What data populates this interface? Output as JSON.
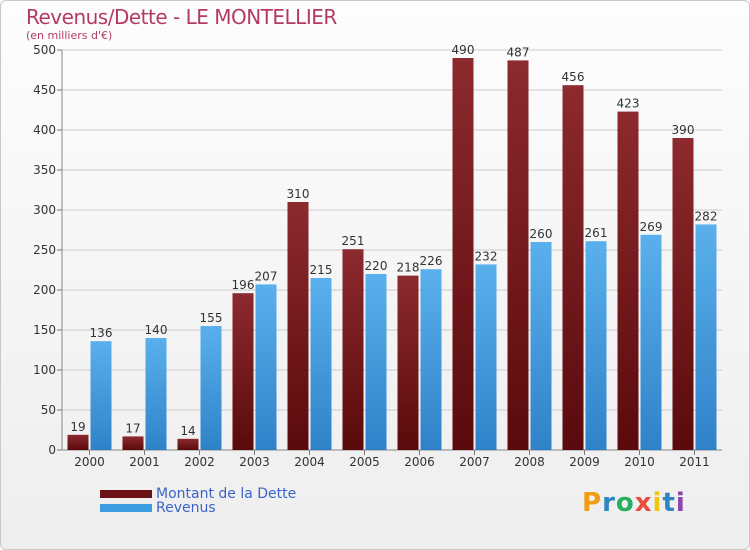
{
  "header": {
    "title": "Revenus/Dette - LE MONTELLIER",
    "unit_note": "(en milliers d'€)"
  },
  "legend": {
    "debt_label": "Montant de la Dette",
    "revenue_label": "Revenus"
  },
  "brand": {
    "letters": [
      "P",
      "r",
      "o",
      "x",
      "i",
      "t",
      "i"
    ],
    "colors": [
      "#f39c12",
      "#2e86c1",
      "#27ae60",
      "#e74c3c",
      "#f1c40f",
      "#2e86c1",
      "#8e44ad"
    ]
  },
  "colors": {
    "debt": "#7a1a1e",
    "revenue": "#3d9be0",
    "grid": "#cccccc",
    "axis_text": "#333333"
  },
  "chart_data": {
    "type": "bar",
    "title": "Revenus/Dette - LE MONTELLIER",
    "subtitle": "(en milliers d'€)",
    "categories": [
      "2000",
      "2001",
      "2002",
      "2003",
      "2004",
      "2005",
      "2006",
      "2007",
      "2008",
      "2009",
      "2010",
      "2011"
    ],
    "series": [
      {
        "name": "Montant de la Dette",
        "values": [
          19,
          17,
          14,
          196,
          310,
          251,
          218,
          490,
          487,
          456,
          423,
          390
        ]
      },
      {
        "name": "Revenus",
        "values": [
          136,
          140,
          155,
          207,
          215,
          220,
          226,
          232,
          260,
          261,
          269,
          282
        ]
      }
    ],
    "ylim": [
      0,
      500
    ],
    "yticks": [
      0,
      50,
      100,
      150,
      200,
      250,
      300,
      350,
      400,
      450,
      500
    ],
    "grid": true,
    "legend_position": "bottom-left"
  }
}
